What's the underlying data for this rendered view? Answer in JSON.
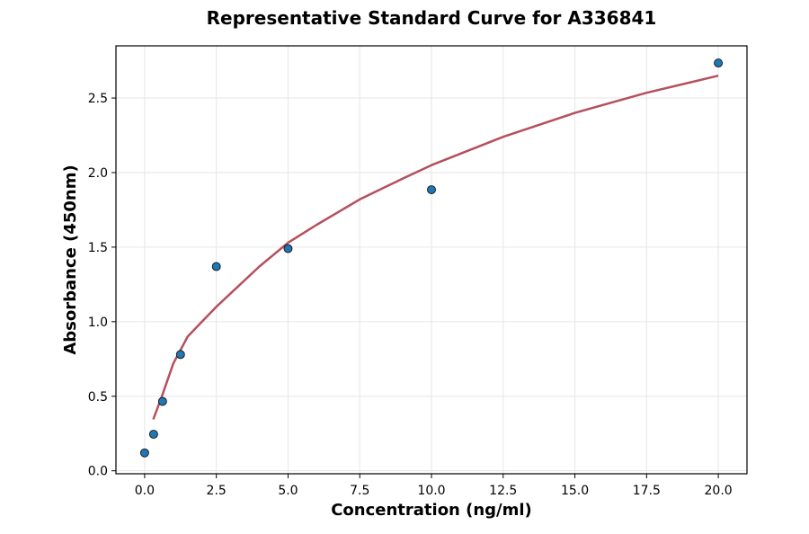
{
  "chart_data": {
    "type": "scatter",
    "title": "Representative Standard Curve for A336841",
    "xlabel": "Concentration (ng/ml)",
    "ylabel": "Absorbance (450nm)",
    "xlim": [
      -1.0,
      21.0
    ],
    "ylim": [
      -0.02,
      2.85
    ],
    "x_ticks": [
      0.0,
      2.5,
      5.0,
      7.5,
      10.0,
      12.5,
      15.0,
      17.5,
      20.0
    ],
    "x_tick_labels": [
      "0.0",
      "2.5",
      "5.0",
      "7.5",
      "10.0",
      "12.5",
      "15.0",
      "17.5",
      "20.0"
    ],
    "y_ticks": [
      0.0,
      0.5,
      1.0,
      1.5,
      2.0,
      2.5
    ],
    "y_tick_labels": [
      "0.0",
      "0.5",
      "1.0",
      "1.5",
      "2.0",
      "2.5"
    ],
    "grid": true,
    "series": [
      {
        "kind": "points",
        "color": "#1f77b4",
        "x": [
          0.0,
          0.3125,
          0.625,
          1.25,
          2.5,
          5.0,
          10.0,
          20.0
        ],
        "y": [
          0.12,
          0.245,
          0.465,
          0.78,
          1.37,
          1.49,
          1.885,
          2.735
        ]
      },
      {
        "kind": "fit-line",
        "color": "#b5505e",
        "x": [
          0.3,
          0.6,
          1.0,
          1.5,
          2.0,
          2.5,
          3.0,
          4.0,
          5.0,
          6.0,
          7.5,
          9.0,
          10.0,
          12.5,
          15.0,
          17.5,
          20.0
        ],
        "y": [
          0.345,
          0.5,
          0.72,
          0.9,
          1.0,
          1.1,
          1.19,
          1.37,
          1.53,
          1.65,
          1.82,
          1.96,
          2.05,
          2.24,
          2.4,
          2.535,
          2.65
        ]
      }
    ]
  }
}
